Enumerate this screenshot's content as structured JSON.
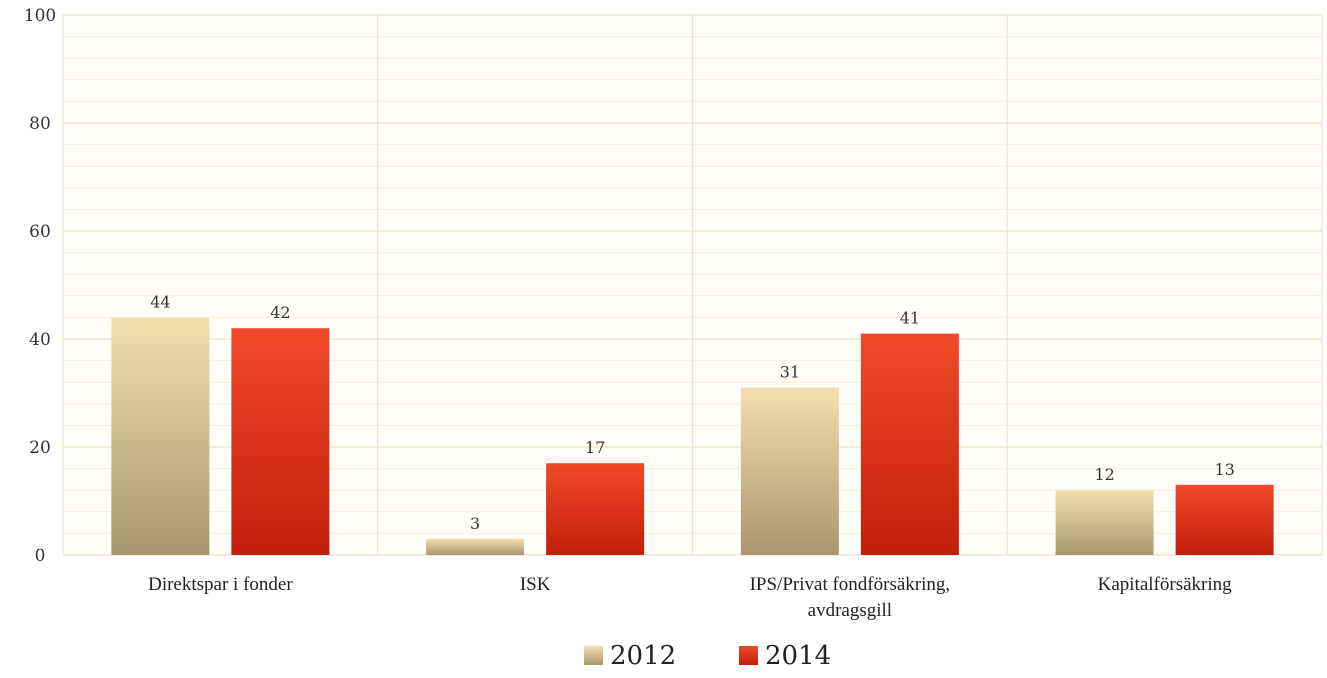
{
  "chart_data": {
    "type": "bar",
    "categories": [
      "Direktspar i fonder",
      "ISK",
      "IPS/Privat fondförsäkring, avdragsgill",
      "Kapitalförsäkring"
    ],
    "category_lines": [
      [
        "Direktspar i fonder"
      ],
      [
        "ISK"
      ],
      [
        "IPS/Privat fondförsäkring,",
        "avdragsgill"
      ],
      [
        "Kapitalförsäkring"
      ]
    ],
    "series": [
      {
        "name": "2012",
        "values": [
          44,
          3,
          31,
          12
        ],
        "color": "#c9b58a"
      },
      {
        "name": "2014",
        "values": [
          42,
          17,
          41,
          13
        ],
        "color": "#d9321a"
      }
    ],
    "ylim": [
      0,
      100
    ],
    "yticks": [
      0,
      20,
      40,
      60,
      80,
      100
    ],
    "data_labels": true,
    "grid": true,
    "legend_position": "bottom-center",
    "title": "",
    "xlabel": "",
    "ylabel": ""
  }
}
